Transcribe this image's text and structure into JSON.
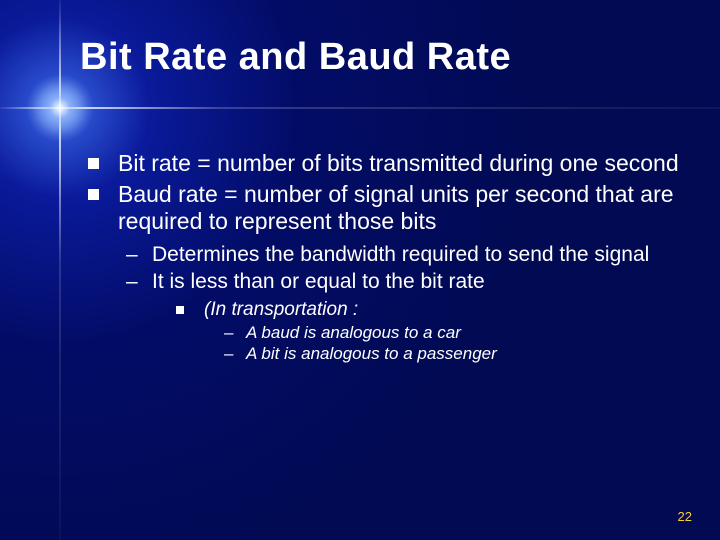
{
  "slide": {
    "title": "Bit Rate and Baud Rate",
    "page_number": "22",
    "colors": {
      "background_center": "#6ea8ff",
      "background_mid": "#0a1a9a",
      "background_edge": "#010a52",
      "text": "#ffffff",
      "page_number": "#ffcc33",
      "bullet": "#ffffff"
    },
    "typography": {
      "title_fontsize_pt": 28,
      "body_fontsize_pt": 17,
      "sub_fontsize_pt": 16,
      "subsub_fontsize_pt": 14,
      "font_family": "Tahoma"
    },
    "bullets": {
      "lvl1": [
        "Bit rate = number of bits transmitted during one second",
        "Baud rate = number of signal units per second that are required to represent those bits"
      ],
      "lvl2": [
        "Determines the bandwidth required to send the signal",
        "It is less than or equal to the bit rate"
      ],
      "lvl3": [
        "(In transportation :"
      ],
      "lvl4": [
        "A baud is analogous to a car",
        "A bit is analogous to a passenger"
      ]
    }
  }
}
